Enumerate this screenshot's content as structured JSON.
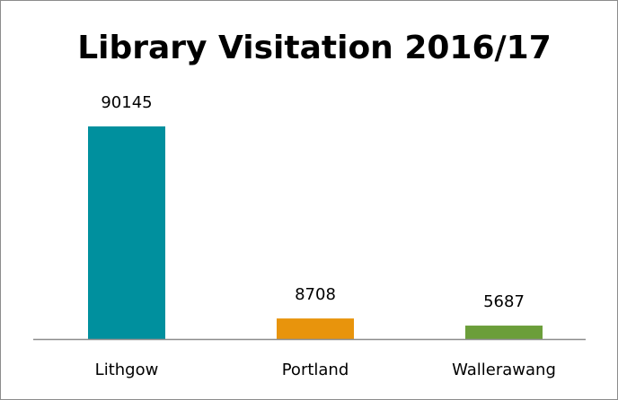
{
  "chart_data": {
    "type": "bar",
    "title": "Library Visitation 2016/17",
    "categories": [
      "Lithgow",
      "Portland",
      "Wallerawang"
    ],
    "values": [
      90145,
      8708,
      5687
    ],
    "colors": [
      "#00909e",
      "#e8940c",
      "#6b9e3a"
    ],
    "ylim": [
      0,
      100000
    ]
  }
}
